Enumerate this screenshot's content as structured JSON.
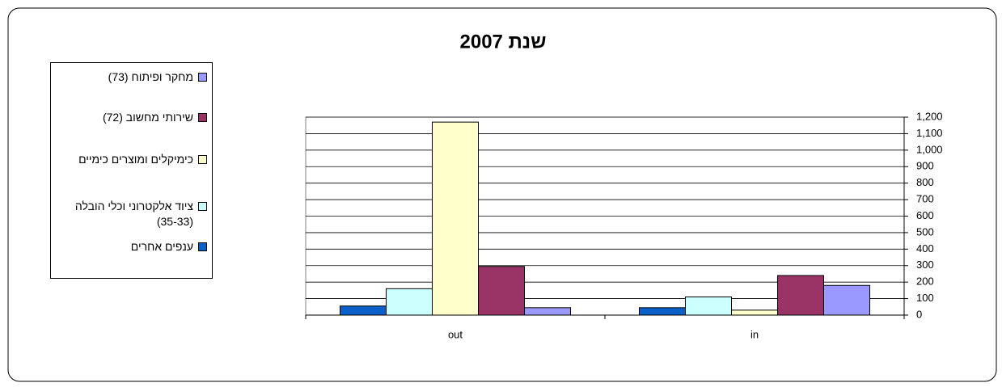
{
  "chart_data": {
    "type": "bar",
    "title": "שנת 2007",
    "categories": [
      "out",
      "in"
    ],
    "series": [
      {
        "name": "ענפים אחרים",
        "color": "#0a5fc8",
        "values": [
          55,
          45
        ]
      },
      {
        "name": "ציוד אלקטרוני וכלי הובלה (35-33)",
        "color": "#ccffff",
        "values": [
          160,
          110
        ]
      },
      {
        "name": "כימיקלים ומוצרים כימיים",
        "color": "#ffffcc",
        "values": [
          1170,
          30
        ]
      },
      {
        "name": "שירותי מחשוב (72)",
        "color": "#993366",
        "values": [
          295,
          240
        ]
      },
      {
        "name": "מחקר ופיתוח (73)",
        "color": "#9999ff",
        "values": [
          45,
          180
        ]
      }
    ],
    "ylim": [
      0,
      1200
    ],
    "yticks": [
      0,
      100,
      200,
      300,
      400,
      500,
      600,
      700,
      800,
      900,
      {
        "value": 1000,
        "label": "1,000"
      },
      {
        "value": 1100,
        "label": "1,100"
      },
      {
        "value": 1200,
        "label": "1,200"
      }
    ],
    "grid": true,
    "legend": "left",
    "y_axis_side": "right"
  }
}
